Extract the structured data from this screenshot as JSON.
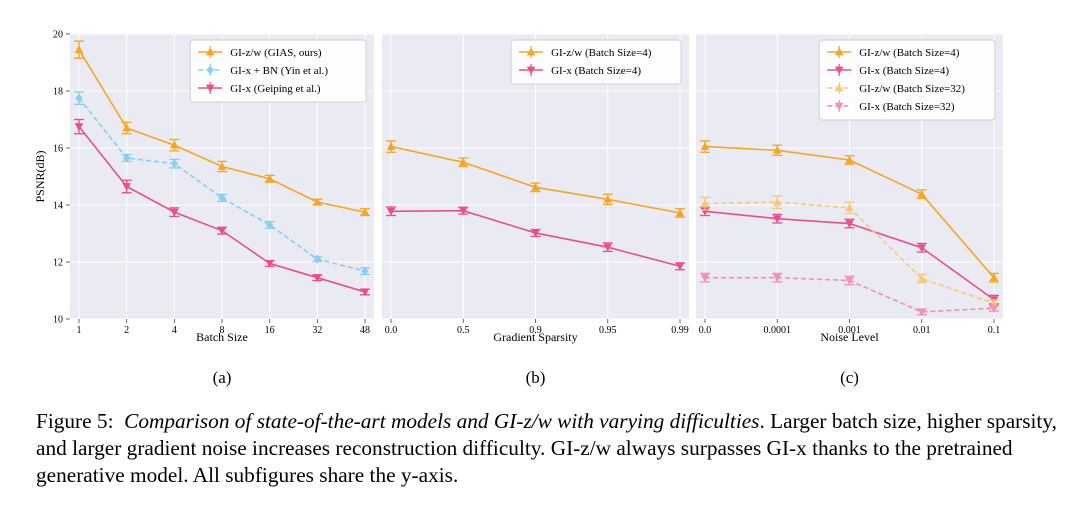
{
  "y_axis": {
    "label": "PSNR(dB)",
    "ticks": [
      10,
      12,
      14,
      16,
      18,
      20
    ],
    "ylim": [
      10,
      20
    ]
  },
  "chart_data": [
    {
      "type": "line",
      "panel_label": "(a)",
      "xlabel": "Batch Size",
      "categories": [
        "1",
        "2",
        "4",
        "8",
        "16",
        "32",
        "48"
      ],
      "ylabel": "PSNR(dB)",
      "ylim": [
        10,
        20
      ],
      "grid": true,
      "legend": "top-right",
      "series": [
        {
          "name": "GI-z/w (GIAS, ours)",
          "color": "#f5a623",
          "marker": "triangle-up",
          "dashed": false,
          "values": [
            19.45,
            16.7,
            16.1,
            15.35,
            14.92,
            14.1,
            13.75
          ],
          "err": [
            0.3,
            0.2,
            0.2,
            0.18,
            0.12,
            0.1,
            0.12
          ]
        },
        {
          "name": "GI-x + BN (Yin et al.)",
          "color": "#87cef0",
          "marker": "diamond",
          "dashed": true,
          "values": [
            17.75,
            15.65,
            15.45,
            14.25,
            13.3,
            12.1,
            11.68
          ],
          "err": [
            0.22,
            0.12,
            0.15,
            0.12,
            0.12,
            0.08,
            0.12
          ]
        },
        {
          "name": "GI-x (Geiping et al.)",
          "color": "#e8508a",
          "marker": "triangle-down",
          "dashed": false,
          "values": [
            16.75,
            14.65,
            13.75,
            13.1,
            11.95,
            11.45,
            10.95
          ],
          "err": [
            0.25,
            0.22,
            0.15,
            0.12,
            0.1,
            0.1,
            0.1
          ]
        }
      ]
    },
    {
      "type": "line",
      "panel_label": "(b)",
      "xlabel": "Gradient Sparsity",
      "categories": [
        "0.0",
        "0.5",
        "0.9",
        "0.95",
        "0.99"
      ],
      "ylim": [
        10,
        20
      ],
      "grid": true,
      "legend": "top-right",
      "series": [
        {
          "name": "GI-z/w (Batch Size=4)",
          "color": "#f5a623",
          "marker": "triangle-up",
          "dashed": false,
          "values": [
            16.05,
            15.5,
            14.62,
            14.2,
            13.72
          ],
          "err": [
            0.2,
            0.15,
            0.15,
            0.18,
            0.15
          ]
        },
        {
          "name": "GI-x (Batch Size=4)",
          "color": "#e8508a",
          "marker": "triangle-down",
          "dashed": false,
          "values": [
            13.78,
            13.8,
            13.02,
            12.52,
            11.85
          ],
          "err": [
            0.15,
            0.12,
            0.12,
            0.15,
            0.12
          ]
        }
      ]
    },
    {
      "type": "line",
      "panel_label": "(c)",
      "xlabel": "Noise Level",
      "categories": [
        "0.0",
        "0.0001",
        "0.001",
        "0.01",
        "0.1"
      ],
      "ylim": [
        10,
        20
      ],
      "grid": true,
      "legend": "top-right",
      "series": [
        {
          "name": "GI-z/w (Batch Size=4)",
          "color": "#f5a623",
          "marker": "triangle-up",
          "dashed": false,
          "values": [
            16.05,
            15.92,
            15.58,
            14.38,
            11.45
          ],
          "err": [
            0.2,
            0.18,
            0.15,
            0.15,
            0.15
          ]
        },
        {
          "name": "GI-x (Batch Size=4)",
          "color": "#e8508a",
          "marker": "triangle-down",
          "dashed": false,
          "values": [
            13.78,
            13.52,
            13.35,
            12.5,
            10.68
          ],
          "err": [
            0.15,
            0.15,
            0.15,
            0.15,
            0.15
          ]
        },
        {
          "name": "GI-z/w (Batch Size=32)",
          "color": "#f8c77a",
          "marker": "triangle-up",
          "dashed": true,
          "values": [
            14.05,
            14.1,
            13.9,
            11.42,
            10.55
          ],
          "err": [
            0.22,
            0.22,
            0.2,
            0.15,
            0.12
          ]
        },
        {
          "name": "GI-x (Batch Size=32)",
          "color": "#f08fb8",
          "marker": "triangle-down",
          "dashed": true,
          "values": [
            11.45,
            11.45,
            11.35,
            10.25,
            10.38
          ],
          "err": [
            0.15,
            0.15,
            0.15,
            0.1,
            0.1
          ]
        }
      ]
    }
  ],
  "caption": {
    "prefix": "Figure 5:",
    "title": "Comparison of state-of-the-art models and GI-z/w with varying difficulties",
    "body": ". Larger batch size, higher sparsity, and larger gradient noise increases reconstruction difficulty. GI-z/w always surpasses GI-x thanks to the pretrained generative model. All subfigures share the y-axis."
  }
}
